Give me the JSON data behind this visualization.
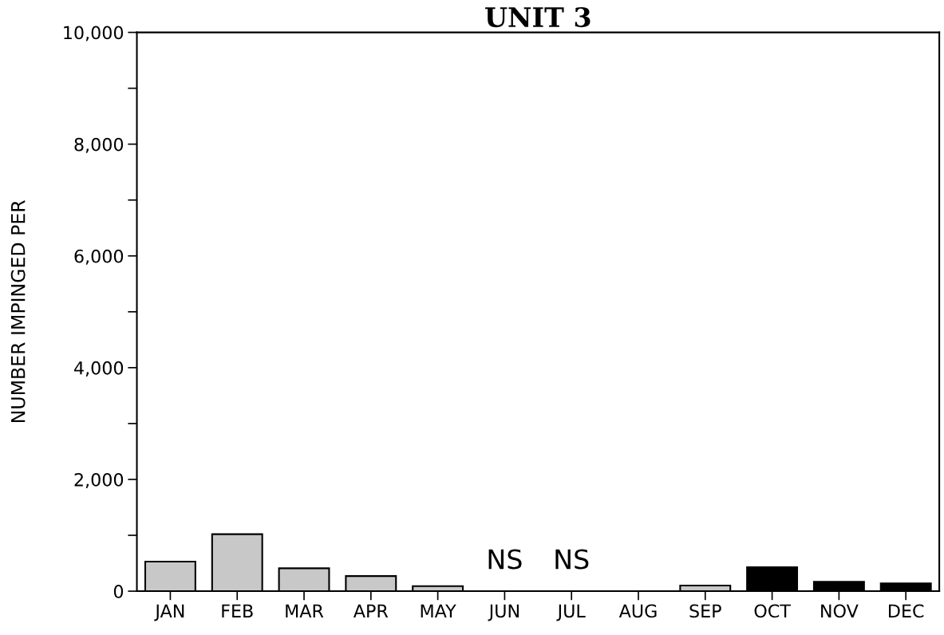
{
  "chart_data": {
    "type": "bar",
    "title": "UNIT 3",
    "ylabel": "NUMBER IMPINGED PER",
    "categories": [
      "JAN",
      "FEB",
      "MAR",
      "APR",
      "MAY",
      "JUN",
      "JUL",
      "AUG",
      "SEP",
      "OCT",
      "NOV",
      "DEC"
    ],
    "values": [
      530,
      1020,
      410,
      270,
      90,
      null,
      null,
      null,
      100,
      430,
      170,
      140
    ],
    "colors": [
      "#c8c8c8",
      "#c8c8c8",
      "#c8c8c8",
      "#c8c8c8",
      "#c8c8c8",
      "#c8c8c8",
      "#c8c8c8",
      "#c8c8c8",
      "#c8c8c8",
      "#000000",
      "#000000",
      "#000000"
    ],
    "ylim": [
      0,
      10000
    ],
    "yticks": [
      0,
      {
        "value": 1000,
        "label": null
      },
      "2,000",
      {
        "value": 3000,
        "label": null
      },
      {
        "value": 4000,
        "label": "4,000"
      },
      {
        "value": 5000,
        "label": null
      },
      {
        "value": 6000,
        "label": "6,000"
      },
      {
        "value": 7000,
        "label": null
      },
      {
        "value": 8000,
        "label": "8,000"
      },
      {
        "value": 9000,
        "label": null
      },
      {
        "value": 10000,
        "label": "10,000"
      }
    ],
    "annotations": [
      "NS",
      "NS"
    ],
    "grid": false,
    "legend": false
  }
}
